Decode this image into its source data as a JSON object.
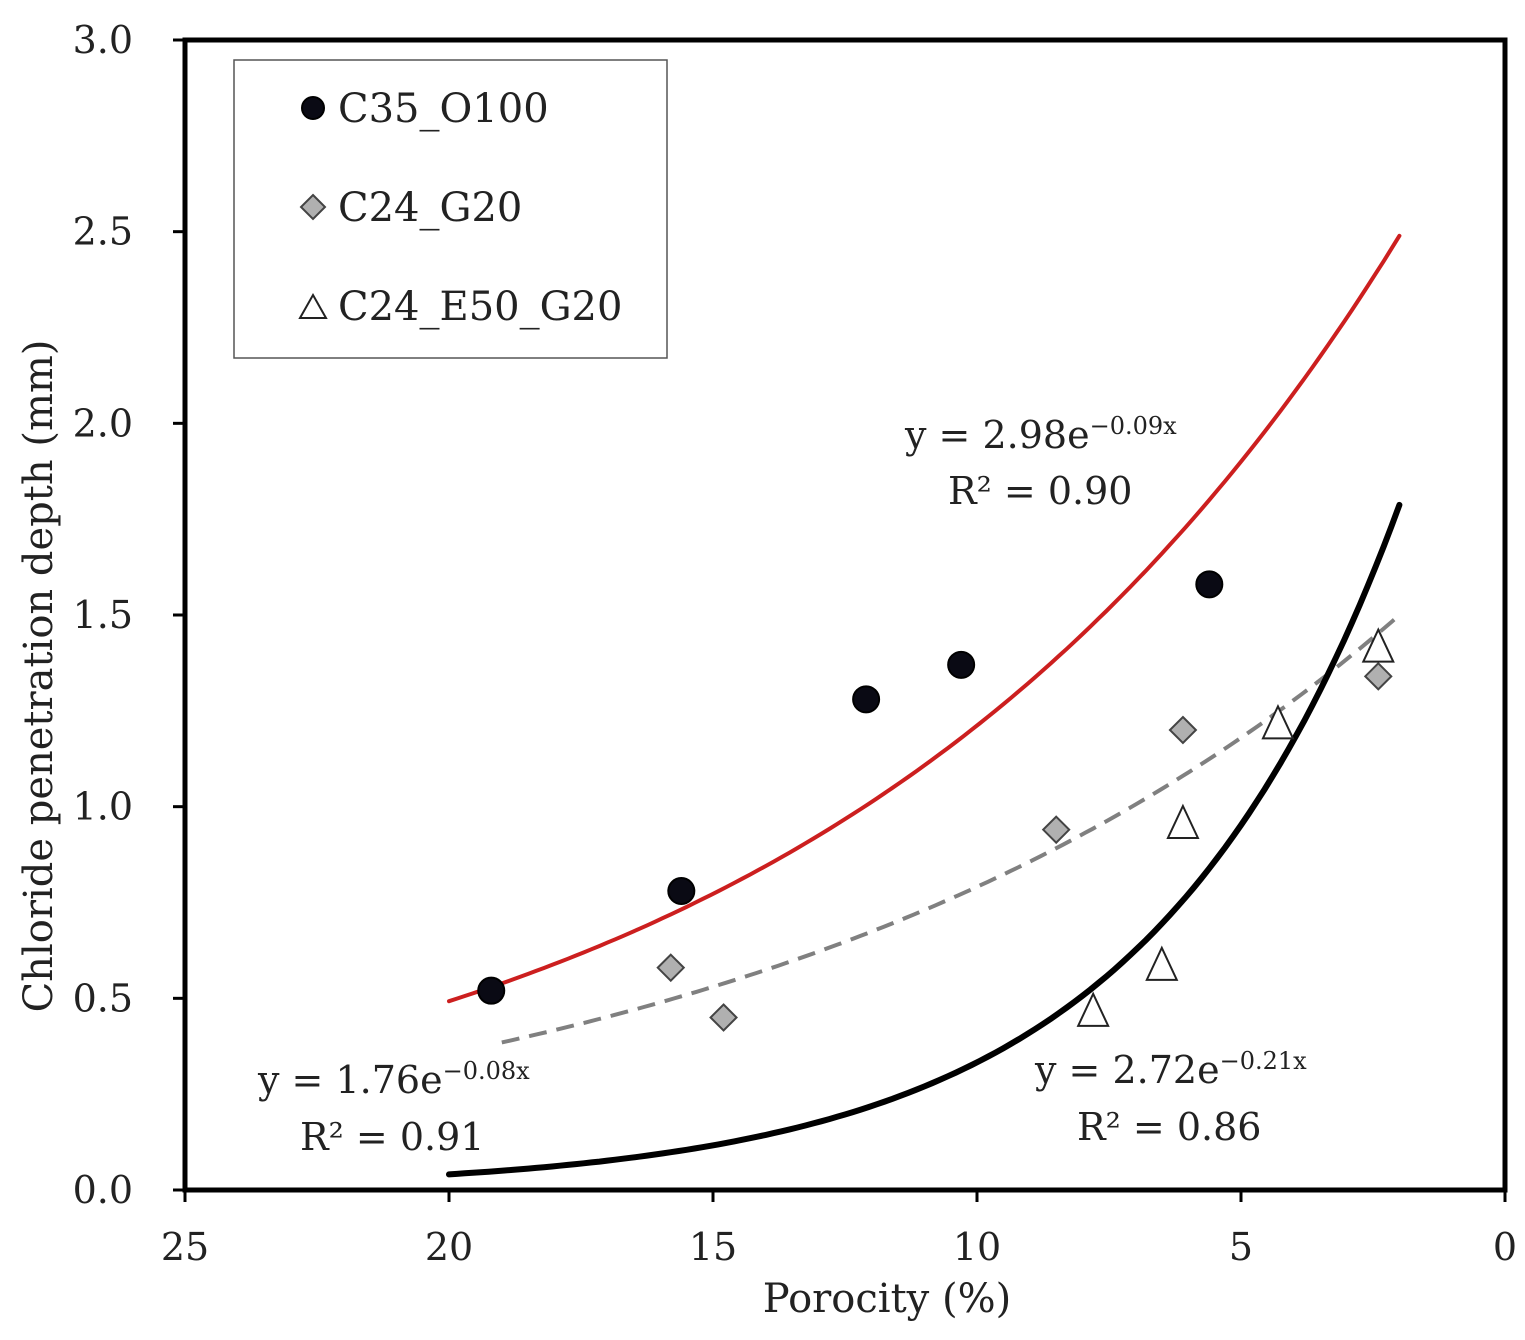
{
  "chart_data": {
    "type": "scatter",
    "xlabel": "Porocity (%)",
    "ylabel": "Chloride penetration depth (mm)",
    "xlim": [
      25,
      0
    ],
    "ylim": [
      0,
      3
    ],
    "x_ticks": [
      "25",
      "20",
      "15",
      "10",
      "5",
      "0"
    ],
    "y_ticks": [
      "0.0",
      "0.5",
      "1.0",
      "1.5",
      "2.0",
      "2.5",
      "3.0"
    ],
    "legend_position": "top-left",
    "series": [
      {
        "name": "C35_O100",
        "marker": "circle",
        "marker_color": "#0a0a14",
        "points": [
          {
            "x": 19.2,
            "y": 0.52
          },
          {
            "x": 15.6,
            "y": 0.78
          },
          {
            "x": 12.1,
            "y": 1.28
          },
          {
            "x": 10.3,
            "y": 1.37
          },
          {
            "x": 5.6,
            "y": 1.58
          }
        ]
      },
      {
        "name": "C24_G20",
        "marker": "diamond",
        "marker_color": "#b0b0b0",
        "points": [
          {
            "x": 15.8,
            "y": 0.58
          },
          {
            "x": 14.8,
            "y": 0.45
          },
          {
            "x": 8.5,
            "y": 0.94
          },
          {
            "x": 6.1,
            "y": 1.2
          },
          {
            "x": 2.4,
            "y": 1.34
          }
        ]
      },
      {
        "name": "C24_E50_G20",
        "marker": "triangle",
        "marker_color": "#ffffff",
        "points": [
          {
            "x": 7.8,
            "y": 0.47
          },
          {
            "x": 6.5,
            "y": 0.59
          },
          {
            "x": 6.1,
            "y": 0.96
          },
          {
            "x": 4.3,
            "y": 1.22
          },
          {
            "x": 2.4,
            "y": 1.42
          }
        ]
      }
    ],
    "trendlines": [
      {
        "series": "C35_O100",
        "a": 2.98,
        "b": -0.09,
        "x_from": 20,
        "x_to": 2,
        "color": "#cc1f1f",
        "style": "solid",
        "eq_prefix": "y = 2.98e",
        "eq_exp": "−0.09x",
        "r2_label": "R² = 0.90"
      },
      {
        "series": "C24_G20",
        "a": 1.76,
        "b": -0.08,
        "x_from": 19,
        "x_to": 2,
        "color": "#808080",
        "style": "dashed",
        "eq_prefix": "y = 1.76e",
        "eq_exp": "−0.08x",
        "r2_label": "R² = 0.91"
      },
      {
        "series": "C24_E50_G20",
        "a": 2.72,
        "b": -0.21,
        "x_from": 20,
        "x_to": 2,
        "color": "#000000",
        "style": "solid",
        "eq_prefix": "y = 2.72e",
        "eq_exp": "−0.21x",
        "r2_label": "R² = 0.86"
      }
    ]
  }
}
